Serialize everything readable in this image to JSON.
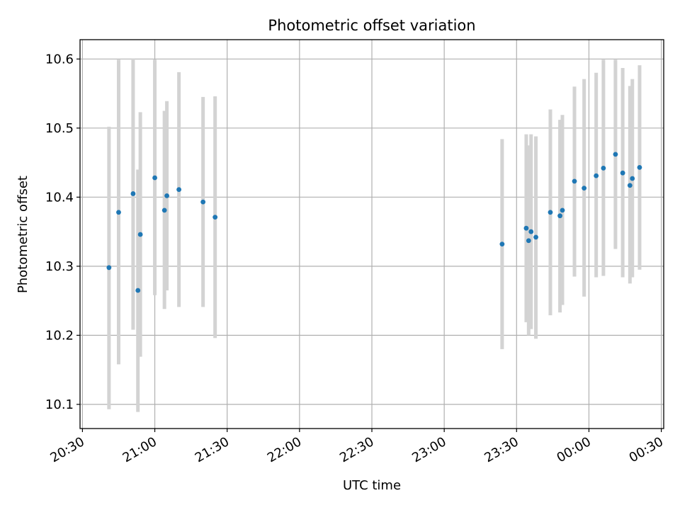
{
  "chart_data": {
    "type": "scatter",
    "title": "Photometric offset variation",
    "xlabel": "UTC time",
    "ylabel": "Photometric offset",
    "xlim": [
      "20:29",
      "00:31"
    ],
    "ylim": [
      10.065,
      10.628
    ],
    "grid": true,
    "x_ticks": [
      "20:30",
      "21:00",
      "21:30",
      "22:00",
      "22:30",
      "23:00",
      "23:30",
      "00:00",
      "00:30"
    ],
    "y_ticks": [
      "10.1",
      "10.2",
      "10.3",
      "10.4",
      "10.5",
      "10.6"
    ],
    "points": [
      {
        "t": "20:41",
        "y": 10.298,
        "ylo": 10.093,
        "yhi": 10.502
      },
      {
        "t": "20:45",
        "y": 10.378,
        "ylo": 10.158,
        "yhi": 10.599
      },
      {
        "t": "20:51",
        "y": 10.405,
        "ylo": 10.208,
        "yhi": 10.601
      },
      {
        "t": "20:53",
        "y": 10.265,
        "ylo": 10.089,
        "yhi": 10.44
      },
      {
        "t": "20:54",
        "y": 10.346,
        "ylo": 10.169,
        "yhi": 10.523
      },
      {
        "t": "21:00",
        "y": 10.428,
        "ylo": 10.258,
        "yhi": 10.599
      },
      {
        "t": "21:04",
        "y": 10.381,
        "ylo": 10.238,
        "yhi": 10.525
      },
      {
        "t": "21:05",
        "y": 10.402,
        "ylo": 10.265,
        "yhi": 10.539
      },
      {
        "t": "21:10",
        "y": 10.411,
        "ylo": 10.241,
        "yhi": 10.581
      },
      {
        "t": "21:20",
        "y": 10.393,
        "ylo": 10.241,
        "yhi": 10.545
      },
      {
        "t": "21:25",
        "y": 10.371,
        "ylo": 10.196,
        "yhi": 10.546
      },
      {
        "t": "23:24",
        "y": 10.332,
        "ylo": 10.18,
        "yhi": 10.484
      },
      {
        "t": "23:34",
        "y": 10.355,
        "ylo": 10.219,
        "yhi": 10.491
      },
      {
        "t": "23:35",
        "y": 10.337,
        "ylo": 10.2,
        "yhi": 10.475
      },
      {
        "t": "23:36",
        "y": 10.35,
        "ylo": 10.209,
        "yhi": 10.491
      },
      {
        "t": "23:38",
        "y": 10.342,
        "ylo": 10.195,
        "yhi": 10.488
      },
      {
        "t": "23:44",
        "y": 10.378,
        "ylo": 10.229,
        "yhi": 10.527
      },
      {
        "t": "23:48",
        "y": 10.373,
        "ylo": 10.233,
        "yhi": 10.512
      },
      {
        "t": "23:49",
        "y": 10.381,
        "ylo": 10.244,
        "yhi": 10.519
      },
      {
        "t": "23:54",
        "y": 10.423,
        "ylo": 10.285,
        "yhi": 10.56
      },
      {
        "t": "23:58",
        "y": 10.413,
        "ylo": 10.256,
        "yhi": 10.571
      },
      {
        "t": "00:03",
        "y": 10.431,
        "ylo": 10.284,
        "yhi": 10.58
      },
      {
        "t": "00:06",
        "y": 10.442,
        "ylo": 10.286,
        "yhi": 10.599
      },
      {
        "t": "00:11",
        "y": 10.462,
        "ylo": 10.325,
        "yhi": 10.599
      },
      {
        "t": "00:14",
        "y": 10.435,
        "ylo": 10.284,
        "yhi": 10.587
      },
      {
        "t": "00:17",
        "y": 10.417,
        "ylo": 10.275,
        "yhi": 10.561
      },
      {
        "t": "00:18",
        "y": 10.427,
        "ylo": 10.284,
        "yhi": 10.571
      },
      {
        "t": "00:21",
        "y": 10.443,
        "ylo": 10.295,
        "yhi": 10.591
      }
    ],
    "colors": {
      "point": "#1f77b4",
      "errorbar": "#d3d3d3",
      "grid": "#b0b0b0",
      "axes": "#000000"
    }
  }
}
